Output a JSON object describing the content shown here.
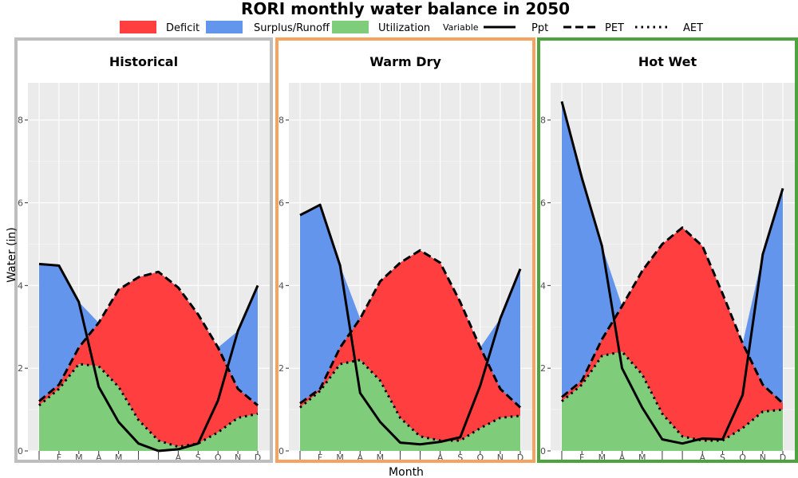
{
  "chart_data": {
    "type": "area",
    "title": "RORI monthly water balance in 2050",
    "xlabel": "Month",
    "ylabel": "Water (in)",
    "ylim": [
      0,
      8.9
    ],
    "yticks": [
      0,
      2,
      4,
      6,
      8
    ],
    "categories": [
      "J",
      "F",
      "M",
      "A",
      "M",
      "J",
      "J",
      "A",
      "S",
      "O",
      "N",
      "D"
    ],
    "legend_position": "top",
    "fill_legend": [
      {
        "name": "Deficit",
        "color": "#ff3f3f"
      },
      {
        "name": "Surplus/Runoff",
        "color": "#6495ed"
      },
      {
        "name": "Utilization",
        "color": "#7fcd7b"
      }
    ],
    "line_legend_title": "Variable",
    "line_legend": [
      {
        "name": "Ppt",
        "dash": "solid"
      },
      {
        "name": "PET",
        "dash": "dashed"
      },
      {
        "name": "AET",
        "dash": "dotted"
      }
    ],
    "panels": [
      {
        "title": "Historical",
        "border_color": "#bebebe",
        "series": [
          {
            "name": "Ppt",
            "values": [
              4.52,
              4.48,
              3.6,
              1.55,
              0.7,
              0.18,
              0.0,
              0.04,
              0.18,
              1.22,
              2.9,
              4.0
            ]
          },
          {
            "name": "PET",
            "values": [
              1.2,
              1.6,
              2.5,
              3.1,
              3.9,
              4.2,
              4.33,
              3.95,
              3.3,
              2.5,
              1.5,
              1.1
            ]
          },
          {
            "name": "AET",
            "values": [
              1.1,
              1.5,
              2.1,
              2.05,
              1.55,
              0.75,
              0.25,
              0.1,
              0.18,
              0.45,
              0.8,
              0.9
            ]
          }
        ]
      },
      {
        "title": "Warm Dry",
        "border_color": "#f4a460",
        "series": [
          {
            "name": "Ppt",
            "values": [
              5.7,
              5.95,
              4.48,
              1.4,
              0.7,
              0.2,
              0.16,
              0.22,
              0.33,
              1.58,
              3.2,
              4.4
            ]
          },
          {
            "name": "PET",
            "values": [
              1.15,
              1.5,
              2.5,
              3.2,
              4.1,
              4.55,
              4.85,
              4.55,
              3.6,
              2.5,
              1.5,
              1.05
            ]
          },
          {
            "name": "AET",
            "values": [
              1.05,
              1.45,
              2.1,
              2.2,
              1.7,
              0.8,
              0.35,
              0.25,
              0.25,
              0.55,
              0.8,
              0.85
            ]
          }
        ]
      },
      {
        "title": "Hot Wet",
        "border_color": "#4ea33e",
        "series": [
          {
            "name": "Ppt",
            "values": [
              8.45,
              6.6,
              4.95,
              2.0,
              1.05,
              0.28,
              0.18,
              0.3,
              0.28,
              1.35,
              4.75,
              6.35
            ]
          },
          {
            "name": "PET",
            "values": [
              1.3,
              1.7,
              2.7,
              3.5,
              4.35,
              5.0,
              5.4,
              4.95,
              3.8,
              2.6,
              1.6,
              1.15
            ]
          },
          {
            "name": "AET",
            "values": [
              1.2,
              1.6,
              2.3,
              2.4,
              1.85,
              0.9,
              0.35,
              0.25,
              0.25,
              0.55,
              0.95,
              1.0
            ]
          }
        ]
      }
    ]
  }
}
